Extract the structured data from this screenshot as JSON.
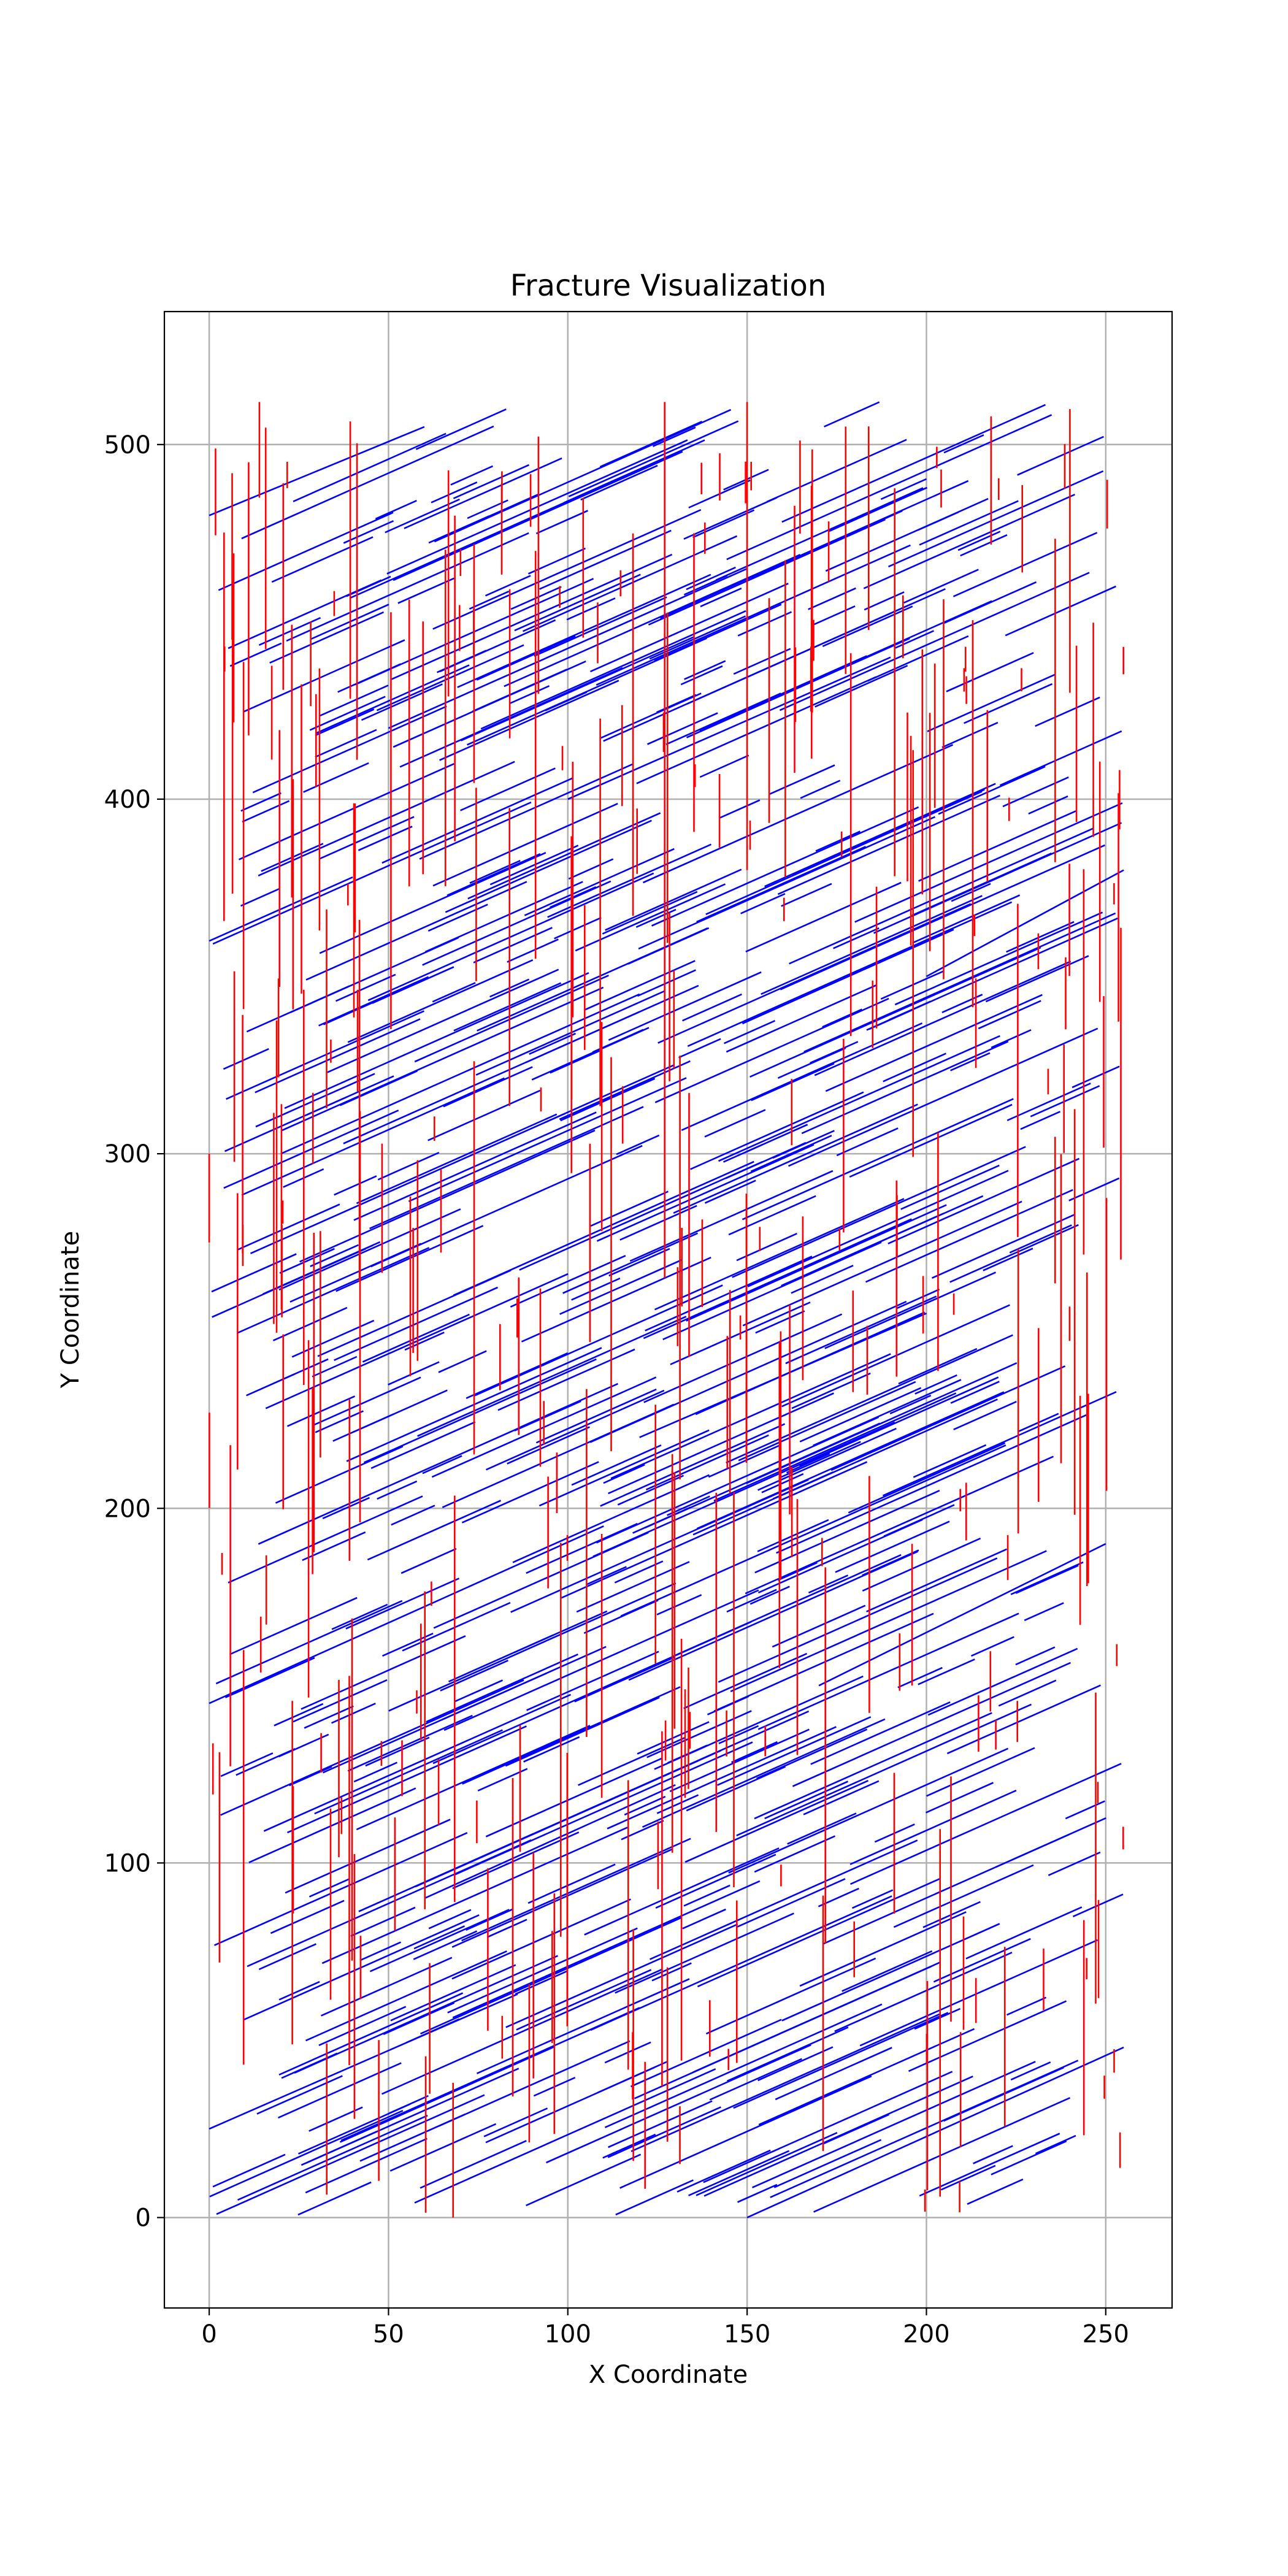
{
  "chart_data": {
    "type": "line",
    "title": "Fracture Visualization",
    "xlabel": "X Coordinate",
    "ylabel": "Y Coordinate",
    "xlim": [
      -12.5,
      268.5
    ],
    "ylim": [
      -25.5,
      537.5
    ],
    "x_ticks": [
      0,
      50,
      100,
      150,
      200,
      250
    ],
    "y_ticks": [
      0,
      100,
      200,
      300,
      400,
      500
    ],
    "grid": true,
    "domain_extent": {
      "x": [
        0,
        255
      ],
      "y": [
        0,
        512
      ]
    },
    "series": [
      {
        "color": "#0000ff",
        "orientation": "inclined",
        "slope": 0.45,
        "count": 700,
        "length_range": [
          12,
          100
        ],
        "segments": [
          [
            [
              0,
              25
            ],
            [
              86,
              63
            ]
          ],
          [
            [
              0,
              145
            ],
            [
              110,
              195
            ]
          ],
          [
            [
              0,
              360
            ],
            [
              40,
              378
            ]
          ],
          [
            [
              0,
              480
            ],
            [
              60,
              505
            ]
          ],
          [
            [
              20,
              300
            ],
            [
              120,
              345
            ]
          ],
          [
            [
              50,
              420
            ],
            [
              150,
              465
            ]
          ],
          [
            [
              100,
              400
            ],
            [
              190,
              440
            ]
          ],
          [
            [
              150,
              0
            ],
            [
              255,
              48
            ]
          ],
          [
            [
              200,
              350
            ],
            [
              255,
              380
            ]
          ],
          [
            [
              120,
              220
            ],
            [
              200,
              255
            ]
          ],
          [
            [
              60,
              90
            ],
            [
              130,
              122
            ]
          ],
          [
            [
              170,
              150
            ],
            [
              250,
              190
            ]
          ]
        ]
      },
      {
        "color": "#ff0000",
        "orientation": "vertical",
        "count": 320,
        "length_range": [
          6,
          120
        ],
        "segments": [
          [
            [
              0,
              275
            ],
            [
              0,
              300
            ]
          ],
          [
            [
              11,
              418
            ],
            [
              11,
              495
            ]
          ],
          [
            [
              14,
              485
            ],
            [
              14,
              512
            ]
          ],
          [
            [
              91,
              355
            ],
            [
              91,
              470
            ]
          ],
          [
            [
              127,
              265
            ],
            [
              127,
              512
            ]
          ],
          [
            [
              150,
              380
            ],
            [
              150,
              512
            ]
          ],
          [
            [
              68,
              0
            ],
            [
              68,
              38
            ]
          ],
          [
            [
              240,
              430
            ],
            [
              240,
              510
            ]
          ],
          [
            [
              254,
              14
            ],
            [
              254,
              24
            ]
          ],
          [
            [
              196,
              150
            ],
            [
              196,
              190
            ]
          ]
        ]
      }
    ]
  }
}
